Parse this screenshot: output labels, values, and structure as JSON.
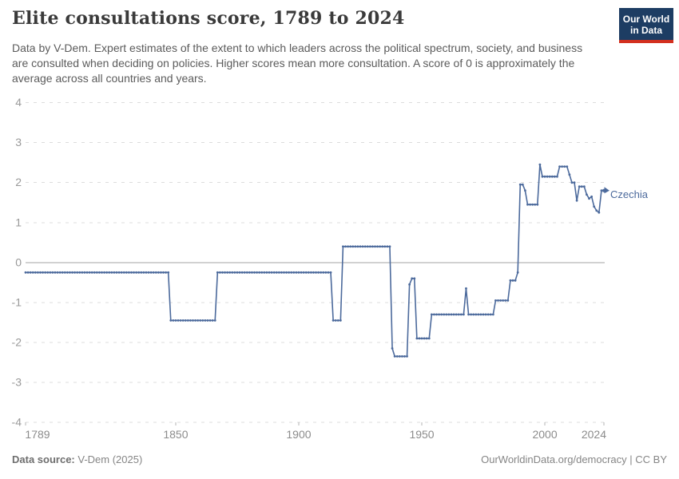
{
  "header": {
    "title": "Elite consultations score, 1789 to 2024",
    "subtitle": "Data by V-Dem. Expert estimates of the extent to which leaders across the political spectrum, society, and business are consulted when deciding on policies. Higher scores mean more consultation. A score of 0 is approximately the average across all countries and years."
  },
  "logo": {
    "line1": "Our World",
    "line2": "in Data"
  },
  "chart_data": {
    "type": "line",
    "title": "Elite consultations score, 1789 to 2024",
    "entity": "Czechia",
    "xlabel": "",
    "ylabel": "",
    "xlim": [
      1789,
      2024
    ],
    "ylim": [
      -4,
      4
    ],
    "x_ticks": [
      1789,
      1850,
      1900,
      1950,
      2000,
      2024
    ],
    "y_ticks": [
      -4,
      -3,
      -2,
      -1,
      0,
      1,
      2,
      3,
      4
    ],
    "grid": true,
    "legend_position": "end-of-line-label",
    "series": [
      {
        "name": "Czechia",
        "step_segments": [
          {
            "from": 1789,
            "to": 1847,
            "value": -0.25
          },
          {
            "from": 1848,
            "to": 1866,
            "value": -1.45
          },
          {
            "from": 1867,
            "to": 1913,
            "value": -0.25
          },
          {
            "from": 1914,
            "to": 1917,
            "value": -1.45
          },
          {
            "from": 1918,
            "to": 1937,
            "value": 0.4
          },
          {
            "from": 1938,
            "to": 1938,
            "value": -2.15
          },
          {
            "from": 1939,
            "to": 1944,
            "value": -2.35
          },
          {
            "from": 1945,
            "to": 1945,
            "value": -0.55
          },
          {
            "from": 1946,
            "to": 1947,
            "value": -0.4
          },
          {
            "from": 1948,
            "to": 1953,
            "value": -1.9
          },
          {
            "from": 1954,
            "to": 1967,
            "value": -1.3
          },
          {
            "from": 1968,
            "to": 1968,
            "value": -0.65
          },
          {
            "from": 1969,
            "to": 1979,
            "value": -1.3
          },
          {
            "from": 1980,
            "to": 1985,
            "value": -0.95
          },
          {
            "from": 1986,
            "to": 1988,
            "value": -0.45
          },
          {
            "from": 1989,
            "to": 1989,
            "value": -0.25
          },
          {
            "from": 1990,
            "to": 1991,
            "value": 1.95
          },
          {
            "from": 1992,
            "to": 1992,
            "value": 1.8
          },
          {
            "from": 1993,
            "to": 1997,
            "value": 1.45
          },
          {
            "from": 1998,
            "to": 1998,
            "value": 2.45
          },
          {
            "from": 1999,
            "to": 2005,
            "value": 2.15
          },
          {
            "from": 2006,
            "to": 2009,
            "value": 2.4
          },
          {
            "from": 2010,
            "to": 2010,
            "value": 2.2
          },
          {
            "from": 2011,
            "to": 2012,
            "value": 2.0
          },
          {
            "from": 2013,
            "to": 2013,
            "value": 1.55
          },
          {
            "from": 2014,
            "to": 2016,
            "value": 1.9
          },
          {
            "from": 2017,
            "to": 2017,
            "value": 1.7
          },
          {
            "from": 2018,
            "to": 2018,
            "value": 1.6
          },
          {
            "from": 2019,
            "to": 2019,
            "value": 1.65
          },
          {
            "from": 2020,
            "to": 2020,
            "value": 1.4
          },
          {
            "from": 2021,
            "to": 2021,
            "value": 1.3
          },
          {
            "from": 2022,
            "to": 2022,
            "value": 1.25
          },
          {
            "from": 2023,
            "to": 2024,
            "value": 1.8
          }
        ]
      }
    ],
    "colors": {
      "line": "#4C6A9C",
      "gridline": "#dcdcdc",
      "zero_line": "#a3a3a3",
      "tick_mark": "#b3b3b3",
      "axis_text": "#999999"
    }
  },
  "footer": {
    "source_label": "Data source:",
    "source_value": " V-Dem (2025)",
    "right": "OurWorldinData.org/democracy | CC BY"
  },
  "brand": {
    "logo_bg": "#1d3d63",
    "logo_red": "#d3301f"
  }
}
